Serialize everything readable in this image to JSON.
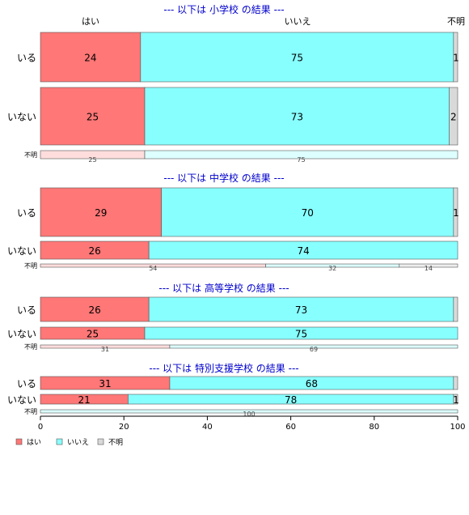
{
  "chart_data": {
    "type": "bar",
    "orientation": "horizontal",
    "stacked": "percent",
    "xlim": [
      0,
      100
    ],
    "x_ticks": [
      "0",
      "20",
      "40",
      "60",
      "80",
      "100"
    ],
    "categories": [
      "はい",
      "いいえ",
      "不明"
    ],
    "colors": {
      "はい": "#FF7777",
      "いいえ": "#88FFFF",
      "不明": "#D9D9D9",
      "title": "#0000CC"
    },
    "legend": {
      "position": "bottom-left",
      "entries": [
        "はい",
        "いいえ",
        "不明"
      ]
    },
    "top_labels": [
      "はい",
      "いいえ",
      "不明"
    ],
    "panels": [
      {
        "title": "--- 以下は 小学校 の結果 ---",
        "rows": [
          {
            "label": "いる",
            "values": [
              24,
              75,
              1
            ],
            "labels": [
              "24",
              "75",
              "1"
            ]
          },
          {
            "label": "いない",
            "values": [
              25,
              73,
              2
            ],
            "labels": [
              "25",
              "73",
              "2"
            ]
          },
          {
            "label": "不明",
            "values": [
              25,
              75,
              0
            ],
            "labels": [
              "25",
              "75",
              ""
            ]
          }
        ]
      },
      {
        "title": "--- 以下は 中学校 の結果 ---",
        "rows": [
          {
            "label": "いる",
            "values": [
              29,
              70,
              1
            ],
            "labels": [
              "29",
              "70",
              "1"
            ]
          },
          {
            "label": "いない",
            "values": [
              26,
              74,
              0
            ],
            "labels": [
              "26",
              "74",
              ""
            ]
          },
          {
            "label": "不明",
            "values": [
              54,
              32,
              14
            ],
            "labels": [
              "54",
              "32",
              "14"
            ]
          }
        ]
      },
      {
        "title": "--- 以下は 高等学校 の結果 ---",
        "rows": [
          {
            "label": "いる",
            "values": [
              26,
              73,
              1
            ],
            "labels": [
              "26",
              "73",
              ""
            ]
          },
          {
            "label": "いない",
            "values": [
              25,
              75,
              0
            ],
            "labels": [
              "25",
              "75",
              ""
            ]
          },
          {
            "label": "不明",
            "values": [
              31,
              69,
              0
            ],
            "labels": [
              "31",
              "69",
              ""
            ]
          }
        ]
      },
      {
        "title": "--- 以下は 特別支援学校 の結果 ---",
        "rows": [
          {
            "label": "いる",
            "values": [
              31,
              68,
              1
            ],
            "labels": [
              "31",
              "68",
              ""
            ]
          },
          {
            "label": "いない",
            "values": [
              21,
              78,
              1
            ],
            "labels": [
              "21",
              "78",
              "1"
            ]
          },
          {
            "label": "不明",
            "values": [
              0,
              100,
              0
            ],
            "labels": [
              "",
              "100",
              ""
            ]
          }
        ]
      }
    ]
  }
}
